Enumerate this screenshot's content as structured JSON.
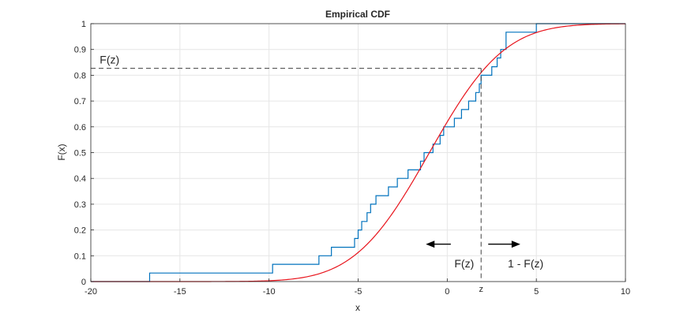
{
  "chart_data": {
    "type": "line",
    "title": "Empirical CDF",
    "xlabel": "x",
    "ylabel": "F(x)",
    "xlim": [
      -20,
      10
    ],
    "ylim": [
      0,
      1
    ],
    "xticks": [
      -20,
      -15,
      -10,
      -5,
      0,
      5,
      10
    ],
    "yticks": [
      0,
      0.1,
      0.2,
      0.3,
      0.4,
      0.5,
      0.6,
      0.7,
      0.8,
      0.9,
      1
    ],
    "grid": true,
    "series": [
      {
        "kind": "step",
        "color": "#0072bd",
        "x": [
          -16.7,
          -9.8,
          -7.2,
          -6.5,
          -5.2,
          -5.0,
          -4.8,
          -4.5,
          -4.3,
          -4.0,
          -3.3,
          -2.8,
          -2.2,
          -1.5,
          -1.3,
          -0.8,
          -0.4,
          -0.2,
          0.4,
          0.8,
          1.2,
          1.6,
          1.8,
          1.9,
          2.5,
          2.8,
          3.0,
          3.3,
          5.0
        ],
        "y": [
          0.033,
          0.067,
          0.1,
          0.133,
          0.167,
          0.2,
          0.233,
          0.267,
          0.3,
          0.333,
          0.367,
          0.4,
          0.433,
          0.467,
          0.5,
          0.533,
          0.567,
          0.6,
          0.633,
          0.667,
          0.7,
          0.733,
          0.767,
          0.8,
          0.833,
          0.867,
          0.9,
          0.967,
          1.0
        ],
        "x_start": -20,
        "x_end": 10
      },
      {
        "kind": "curve",
        "color": "#e8141c",
        "distribution": "normal",
        "mean": -1,
        "sd": 3.3
      }
    ],
    "annotations": [
      {
        "text": "F(z)",
        "x": -19.5,
        "y": 0.845
      },
      {
        "text": "F(z)",
        "x": 0.4,
        "y": 0.055
      },
      {
        "text": "1 - F(z)",
        "x": 3.4,
        "y": 0.055
      },
      {
        "text": "z",
        "x": 1.9,
        "y": -0.04
      }
    ],
    "reference": {
      "z": 1.9,
      "Fz": 0.827
    },
    "arrows": [
      {
        "direction": "left",
        "x_from": 0.2,
        "x_to": -1.2,
        "y": 0.145
      },
      {
        "direction": "right",
        "x_from": 2.3,
        "x_to": 4.1,
        "y": 0.145
      }
    ]
  }
}
